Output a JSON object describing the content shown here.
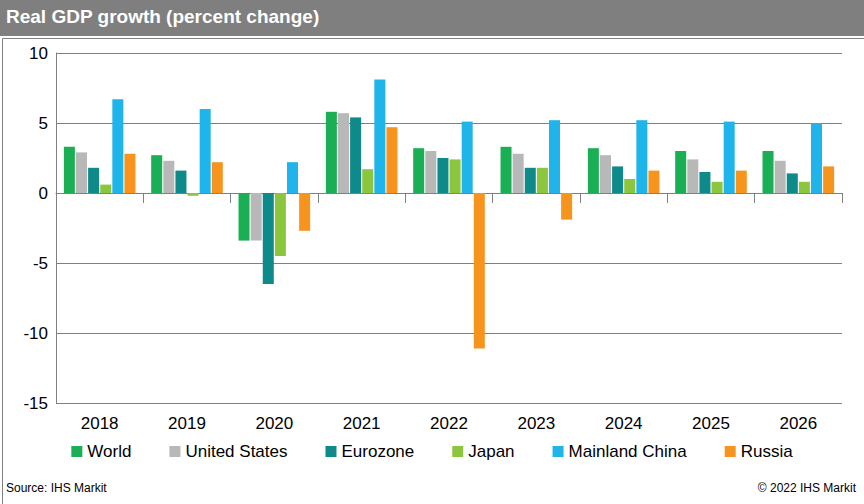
{
  "chart_data": {
    "type": "bar",
    "title": "Real GDP growth (percent change)",
    "source": "Source: IHS Markit",
    "copyright": "© 2022 IHS Markit",
    "categories": [
      "2018",
      "2019",
      "2020",
      "2021",
      "2022",
      "2023",
      "2024",
      "2025",
      "2026"
    ],
    "series": [
      {
        "name": "World",
        "color": "#1aaf54",
        "values": [
          3.3,
          2.7,
          -3.4,
          5.8,
          3.2,
          3.3,
          3.2,
          3.0,
          3.0
        ]
      },
      {
        "name": "United States",
        "color": "#b8b8b8",
        "values": [
          2.9,
          2.3,
          -3.4,
          5.7,
          3.0,
          2.8,
          2.7,
          2.4,
          2.3
        ]
      },
      {
        "name": "Eurozone",
        "color": "#0e8a8a",
        "values": [
          1.8,
          1.6,
          -6.5,
          5.4,
          2.5,
          1.8,
          1.9,
          1.5,
          1.4
        ]
      },
      {
        "name": "Japan",
        "color": "#8cc63f",
        "values": [
          0.6,
          -0.2,
          -4.5,
          1.7,
          2.4,
          1.8,
          1.0,
          0.8,
          0.8
        ]
      },
      {
        "name": "Mainland China",
        "color": "#1fb5ea",
        "values": [
          6.7,
          6.0,
          2.2,
          8.1,
          5.1,
          5.2,
          5.2,
          5.1,
          5.0
        ]
      },
      {
        "name": "Russia",
        "color": "#f7941d",
        "values": [
          2.8,
          2.2,
          -2.7,
          4.7,
          -11.1,
          -1.9,
          1.6,
          1.6,
          1.9
        ]
      }
    ],
    "ylim": [
      -15,
      10
    ],
    "yticks": [
      -15,
      -10,
      -5,
      0,
      5,
      10
    ],
    "grid": true,
    "legend": "bottom"
  }
}
